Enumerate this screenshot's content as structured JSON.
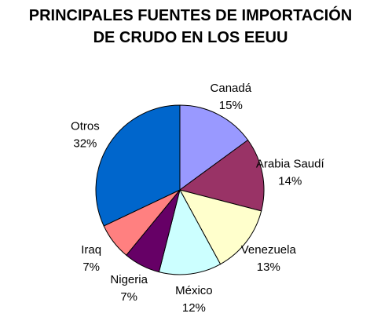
{
  "title_lines": [
    "PRINCIPALES FUENTES DE IMPORTACIÓN",
    "DE CRUDO EN LOS EEUU"
  ],
  "chart_data": {
    "type": "pie",
    "title": "PRINCIPALES FUENTES DE IMPORTACIÓN DE CRUDO EN LOS EEUU",
    "slices": [
      {
        "label": "Canadá",
        "value": 15,
        "value_label": "15%",
        "color": "#9999ff"
      },
      {
        "label": "Arabia Saudí",
        "value": 14,
        "value_label": "14%",
        "color": "#993366"
      },
      {
        "label": "Venezuela",
        "value": 13,
        "value_label": "13%",
        "color": "#ffffcc"
      },
      {
        "label": "México",
        "value": 12,
        "value_label": "12%",
        "color": "#ccffff"
      },
      {
        "label": "Nigeria",
        "value": 7,
        "value_label": "7%",
        "color": "#660066"
      },
      {
        "label": "Iraq",
        "value": 7,
        "value_label": "7%",
        "color": "#ff8080"
      },
      {
        "label": "Otros",
        "value": 32,
        "value_label": "32%",
        "color": "#0066cc"
      }
    ],
    "start_angle": "12 o'clock",
    "direction": "clockwise",
    "legend": "none",
    "labels": "outside"
  }
}
